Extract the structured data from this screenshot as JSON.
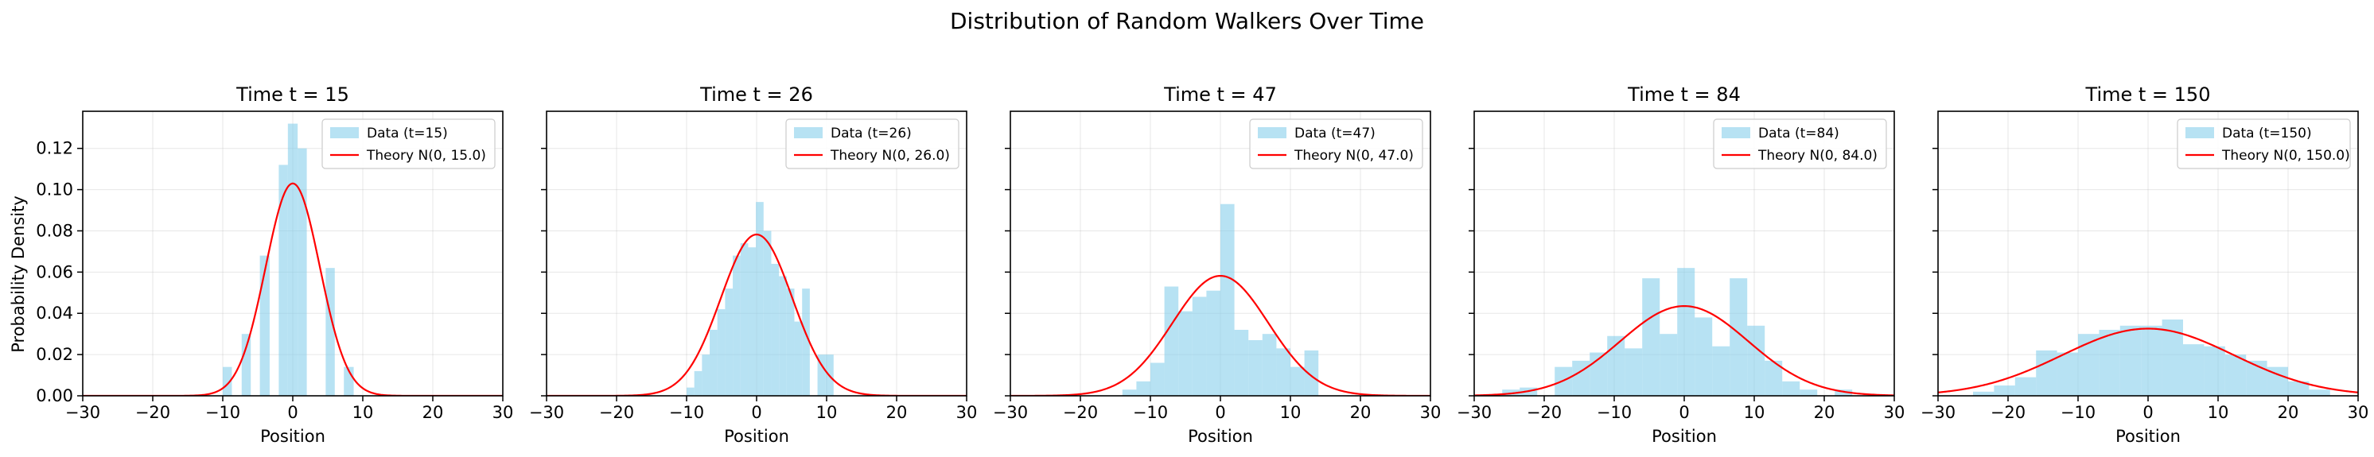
{
  "figure": {
    "title": "Distribution of Random Walkers Over Time",
    "shared_ylabel": "Probability Density"
  },
  "chart_data": [
    {
      "type": "bar",
      "title": "Time t = 15",
      "xlabel": "Position",
      "ylabel": "Probability Density",
      "xlim": [
        -30,
        30
      ],
      "ylim": [
        0,
        0.138
      ],
      "xticks": [
        -30,
        -20,
        -10,
        0,
        10,
        20,
        30
      ],
      "yticks": [
        0.0,
        0.02,
        0.04,
        0.06,
        0.08,
        0.1,
        0.12
      ],
      "grid": true,
      "legend_position": "upper right",
      "colors": {
        "hist": "#87ceeb",
        "theory": "#ff0000"
      },
      "series": [
        {
          "name": "Data (t=15)",
          "kind": "histogram",
          "bins": [
            [
              -10,
              -8.7,
              0.014
            ],
            [
              -8.7,
              -7.3,
              0.0
            ],
            [
              -7.3,
              -6,
              0.03
            ],
            [
              -6,
              -4.7,
              0.0
            ],
            [
              -4.7,
              -3.3,
              0.068
            ],
            [
              -3.3,
              -2,
              0.0
            ],
            [
              -2,
              -0.7,
              0.112
            ],
            [
              -0.7,
              0.7,
              0.132
            ],
            [
              0.7,
              2,
              0.12
            ],
            [
              2,
              3.3,
              0.0
            ],
            [
              3.3,
              4.7,
              0.0
            ],
            [
              4.7,
              6,
              0.062
            ],
            [
              6,
              7.3,
              0.0
            ],
            [
              7.3,
              8.7,
              0.014
            ]
          ]
        },
        {
          "name": "Theory N(0, 15.0)",
          "kind": "normal",
          "variance": 15.0
        }
      ]
    },
    {
      "type": "bar",
      "title": "Time t = 26",
      "xlabel": "Position",
      "ylabel": "",
      "xlim": [
        -30,
        30
      ],
      "ylim": [
        0,
        0.138
      ],
      "xticks": [
        -30,
        -20,
        -10,
        0,
        10,
        20,
        30
      ],
      "yticks": [
        0.0,
        0.02,
        0.04,
        0.06,
        0.08,
        0.1,
        0.12
      ],
      "grid": true,
      "legend_position": "upper right",
      "colors": {
        "hist": "#87ceeb",
        "theory": "#ff0000"
      },
      "series": [
        {
          "name": "Data (t=26)",
          "kind": "histogram",
          "bins": [
            [
              -10,
              -8.9,
              0.004
            ],
            [
              -8.9,
              -7.8,
              0.012
            ],
            [
              -7.8,
              -6.7,
              0.02
            ],
            [
              -6.7,
              -5.6,
              0.032
            ],
            [
              -5.6,
              -4.5,
              0.042
            ],
            [
              -4.5,
              -3.4,
              0.052
            ],
            [
              -3.4,
              -2.3,
              0.068
            ],
            [
              -2.3,
              -1.2,
              0.074
            ],
            [
              -1.2,
              -0.1,
              0.072
            ],
            [
              -0.1,
              1,
              0.094
            ],
            [
              1,
              2.1,
              0.08
            ],
            [
              2.1,
              3.2,
              0.064
            ],
            [
              3.2,
              4.3,
              0.058
            ],
            [
              4.3,
              5.4,
              0.052
            ],
            [
              5.4,
              6.5,
              0.036
            ],
            [
              6.5,
              7.6,
              0.052
            ],
            [
              7.6,
              8.7,
              0.0
            ],
            [
              8.7,
              9.8,
              0.02
            ],
            [
              9.8,
              11,
              0.02
            ]
          ]
        },
        {
          "name": "Theory N(0, 26.0)",
          "kind": "normal",
          "variance": 26.0
        }
      ]
    },
    {
      "type": "bar",
      "title": "Time t = 47",
      "xlabel": "Position",
      "ylabel": "",
      "xlim": [
        -30,
        30
      ],
      "ylim": [
        0,
        0.138
      ],
      "xticks": [
        -30,
        -20,
        -10,
        0,
        10,
        20,
        30
      ],
      "yticks": [
        0.0,
        0.02,
        0.04,
        0.06,
        0.08,
        0.1,
        0.12
      ],
      "grid": true,
      "legend_position": "upper right",
      "colors": {
        "hist": "#87ceeb",
        "theory": "#ff0000"
      },
      "series": [
        {
          "name": "Data (t=47)",
          "kind": "histogram",
          "bins": [
            [
              -14,
              -12,
              0.003
            ],
            [
              -12,
              -10,
              0.007
            ],
            [
              -10,
              -8,
              0.016
            ],
            [
              -8,
              -6,
              0.053
            ],
            [
              -6,
              -4,
              0.041
            ],
            [
              -4,
              -2,
              0.048
            ],
            [
              -2,
              0,
              0.051
            ],
            [
              0,
              2,
              0.093
            ],
            [
              2,
              4,
              0.032
            ],
            [
              4,
              6,
              0.027
            ],
            [
              6,
              8,
              0.03
            ],
            [
              8,
              10,
              0.023
            ],
            [
              10,
              12,
              0.014
            ],
            [
              12,
              14,
              0.022
            ]
          ]
        },
        {
          "name": "Theory N(0, 47.0)",
          "kind": "normal",
          "variance": 47.0
        }
      ]
    },
    {
      "type": "bar",
      "title": "Time t = 84",
      "xlabel": "Position",
      "ylabel": "",
      "xlim": [
        -30,
        30
      ],
      "ylim": [
        0,
        0.138
      ],
      "xticks": [
        -30,
        -20,
        -10,
        0,
        10,
        20,
        30
      ],
      "yticks": [
        0.0,
        0.02,
        0.04,
        0.06,
        0.08,
        0.1,
        0.12
      ],
      "grid": true,
      "legend_position": "upper right",
      "colors": {
        "hist": "#87ceeb",
        "theory": "#ff0000"
      },
      "series": [
        {
          "name": "Data (t=84)",
          "kind": "histogram",
          "bins": [
            [
              -26,
              -23.5,
              0.003
            ],
            [
              -23.5,
              -21,
              0.004
            ],
            [
              -21,
              -18.5,
              0.0
            ],
            [
              -18.5,
              -16,
              0.014
            ],
            [
              -16,
              -13.5,
              0.017
            ],
            [
              -13.5,
              -11,
              0.021
            ],
            [
              -11,
              -8.5,
              0.029
            ],
            [
              -8.5,
              -6,
              0.023
            ],
            [
              -6,
              -3.5,
              0.057
            ],
            [
              -3.5,
              -1,
              0.03
            ],
            [
              -1,
              1.5,
              0.062
            ],
            [
              1.5,
              4,
              0.038
            ],
            [
              4,
              6.5,
              0.024
            ],
            [
              6.5,
              9,
              0.057
            ],
            [
              9,
              11.5,
              0.034
            ],
            [
              11.5,
              14,
              0.017
            ],
            [
              14,
              16.5,
              0.007
            ],
            [
              16.5,
              19,
              0.003
            ],
            [
              19,
              21.5,
              0.0
            ],
            [
              21.5,
              24,
              0.003
            ]
          ]
        },
        {
          "name": "Theory N(0, 84.0)",
          "kind": "normal",
          "variance": 84.0
        }
      ]
    },
    {
      "type": "bar",
      "title": "Time t = 150",
      "xlabel": "Position",
      "ylabel": "",
      "xlim": [
        -30,
        30
      ],
      "ylim": [
        0,
        0.138
      ],
      "xticks": [
        -30,
        -20,
        -10,
        0,
        10,
        20,
        30
      ],
      "yticks": [
        0.0,
        0.02,
        0.04,
        0.06,
        0.08,
        0.1,
        0.12
      ],
      "grid": true,
      "legend_position": "upper right",
      "colors": {
        "hist": "#87ceeb",
        "theory": "#ff0000"
      },
      "series": [
        {
          "name": "Data (t=150)",
          "kind": "histogram",
          "bins": [
            [
              -25,
              -22,
              0.002
            ],
            [
              -22,
              -19,
              0.005
            ],
            [
              -19,
              -16,
              0.009
            ],
            [
              -16,
              -13,
              0.022
            ],
            [
              -13,
              -10,
              0.021
            ],
            [
              -10,
              -7,
              0.03
            ],
            [
              -7,
              -4,
              0.032
            ],
            [
              -4,
              -1,
              0.034
            ],
            [
              -1,
              2,
              0.034
            ],
            [
              2,
              5,
              0.037
            ],
            [
              5,
              8,
              0.025
            ],
            [
              8,
              11,
              0.024
            ],
            [
              11,
              14,
              0.02
            ],
            [
              14,
              17,
              0.017
            ],
            [
              17,
              20,
              0.014
            ],
            [
              20,
              23,
              0.007
            ],
            [
              23,
              26,
              0.003
            ]
          ]
        },
        {
          "name": "Theory N(0, 150.0)",
          "kind": "normal",
          "variance": 150.0
        }
      ]
    }
  ]
}
